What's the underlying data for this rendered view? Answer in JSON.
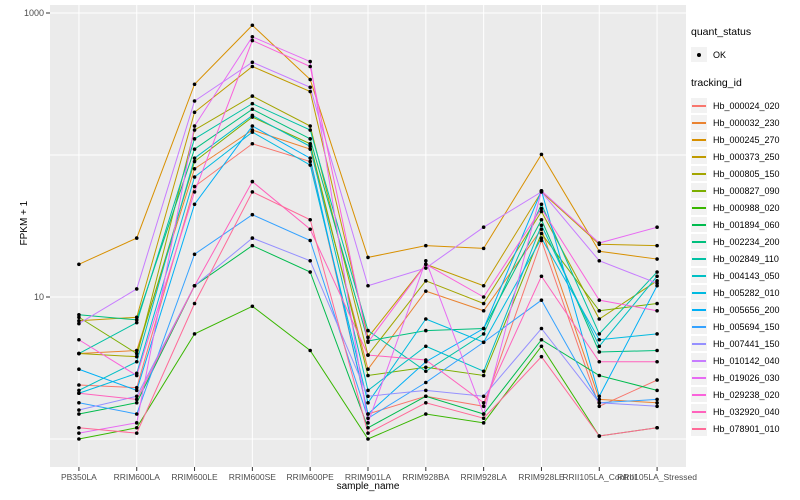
{
  "figure": {
    "background": "#FFFFFF",
    "panel_background": "#EBEBEB",
    "gridline_color": "#FFFFFF",
    "point_color": "#000000",
    "tick_color": "#333333",
    "tick_label_color": "#4D4D4D",
    "legend_key_background": "#F2F2F2"
  },
  "legend": {
    "quant_status": {
      "title": "quant_status",
      "items": [
        {
          "label": "OK",
          "marker": "point"
        }
      ]
    },
    "tracking_id": {
      "title": "tracking_id"
    }
  },
  "chart_data": {
    "type": "line",
    "title": "",
    "xlabel": "sample_name",
    "ylabel": "FPKM + 1",
    "y_scale": "log10",
    "ylim": [
      0.65,
      1070
    ],
    "grid": true,
    "legend_position": "right",
    "y_ticks": [
      {
        "value": 1000,
        "label": "1000"
      },
      {
        "value": 10,
        "label": "10"
      }
    ],
    "y_gridlines": [
      1,
      10,
      100,
      1000
    ],
    "categories": [
      "PB350LA",
      "RRIM600LA",
      "RRIM600LE",
      "RRIM600SE",
      "RRIM600PE",
      "RRIM901LA",
      "RRIM928BA",
      "RRIM928LA",
      "RRIM928LE",
      "RRII105LA_Control",
      "RRII105LA_Stressed"
    ],
    "series": [
      {
        "name": "Hb_000024_020",
        "color": "#F8766D",
        "values": [
          2.4,
          2.3,
          60,
          120,
          90,
          1.5,
          2.0,
          1.7,
          25,
          1.7,
          2.6
        ]
      },
      {
        "name": "Hb_000032_230",
        "color": "#EA8331",
        "values": [
          4.0,
          4.2,
          80,
          150,
          110,
          3.1,
          11,
          8.0,
          30,
          1.9,
          1.8
        ]
      },
      {
        "name": "Hb_000245_270",
        "color": "#D89000",
        "values": [
          17,
          26,
          315,
          820,
          340,
          19,
          23,
          22,
          101,
          21,
          18.5
        ]
      },
      {
        "name": "Hb_000373_250",
        "color": "#C09B00",
        "values": [
          6.8,
          7.2,
          200,
          420,
          280,
          5.2,
          17,
          12,
          55,
          23.5,
          23
        ]
      },
      {
        "name": "Hb_000805_150",
        "color": "#A3A500",
        "values": [
          4.0,
          3.8,
          150,
          260,
          160,
          3.9,
          13,
          9.0,
          40,
          7.0,
          13
        ]
      },
      {
        "name": "Hb_000827_090",
        "color": "#7CAE00",
        "values": [
          7.2,
          4.0,
          90,
          185,
          120,
          2.8,
          3.2,
          2.8,
          28,
          8.0,
          9.0
        ]
      },
      {
        "name": "Hb_000988_020",
        "color": "#39B600",
        "values": [
          1.0,
          1.2,
          5.5,
          8.6,
          4.2,
          1.0,
          1.5,
          1.3,
          4.5,
          1.05,
          1.2
        ]
      },
      {
        "name": "Hb_001894_060",
        "color": "#00BB4E",
        "values": [
          1.5,
          1.8,
          12,
          23,
          15,
          1.2,
          2.0,
          1.5,
          5.0,
          2.8,
          2.2
        ]
      },
      {
        "name": "Hb_002234_200",
        "color": "#00BF7D",
        "values": [
          7.5,
          6.9,
          110,
          210,
          130,
          4.9,
          5.8,
          6.0,
          35,
          4.1,
          4.2
        ]
      },
      {
        "name": "Hb_002849_110",
        "color": "#00C1A3",
        "values": [
          4.0,
          6.6,
          130,
          230,
          150,
          5.8,
          3.0,
          5.5,
          45,
          5.5,
          15
        ]
      },
      {
        "name": "Hb_004143_050",
        "color": "#00BFC4",
        "values": [
          2.2,
          3.5,
          95,
          190,
          115,
          2.2,
          4.5,
          3.0,
          32,
          4.5,
          14
        ]
      },
      {
        "name": "Hb_005282_010",
        "color": "#00BAE0",
        "values": [
          2.1,
          2.9,
          70,
          145,
          85,
          1.8,
          7.0,
          4.8,
          26,
          5.0,
          5.5
        ]
      },
      {
        "name": "Hb_005656_200",
        "color": "#00B0F6",
        "values": [
          3.1,
          2.2,
          45,
          160,
          95,
          1.5,
          3.5,
          6.0,
          56,
          2.0,
          12
        ]
      },
      {
        "name": "Hb_005694_150",
        "color": "#35A2FF",
        "values": [
          1.8,
          1.5,
          20,
          38,
          25,
          1.4,
          2.5,
          4.8,
          9.5,
          1.8,
          1.9
        ]
      },
      {
        "name": "Hb_007441_150",
        "color": "#9590FF",
        "values": [
          1.6,
          2.0,
          12,
          26,
          18,
          2.0,
          2.2,
          2.0,
          6.0,
          1.8,
          1.7
        ]
      },
      {
        "name": "Hb_010142_040",
        "color": "#C77CFF",
        "values": [
          6.5,
          11.4,
          240,
          450,
          300,
          12,
          16,
          31,
          55,
          18,
          12.5
        ]
      },
      {
        "name": "Hb_019026_030",
        "color": "#E76BF3",
        "values": [
          1.1,
          1.3,
          160,
          680,
          455,
          1.3,
          18,
          1.5,
          56,
          24,
          31
        ]
      },
      {
        "name": "Hb_029238_020",
        "color": "#FA62DB",
        "values": [
          5.0,
          2.8,
          55,
          640,
          420,
          4.8,
          17,
          10,
          42,
          9.5,
          8.0
        ]
      },
      {
        "name": "Hb_032920_040",
        "color": "#FF62BC",
        "values": [
          2.1,
          1.9,
          12,
          65,
          30,
          3.9,
          3.6,
          1.8,
          14,
          3.5,
          3.5
        ]
      },
      {
        "name": "Hb_078901_010",
        "color": "#FF6A98",
        "values": [
          1.2,
          1.1,
          9.0,
          55,
          35,
          1.1,
          1.8,
          1.4,
          3.8,
          1.05,
          1.2
        ]
      }
    ]
  }
}
